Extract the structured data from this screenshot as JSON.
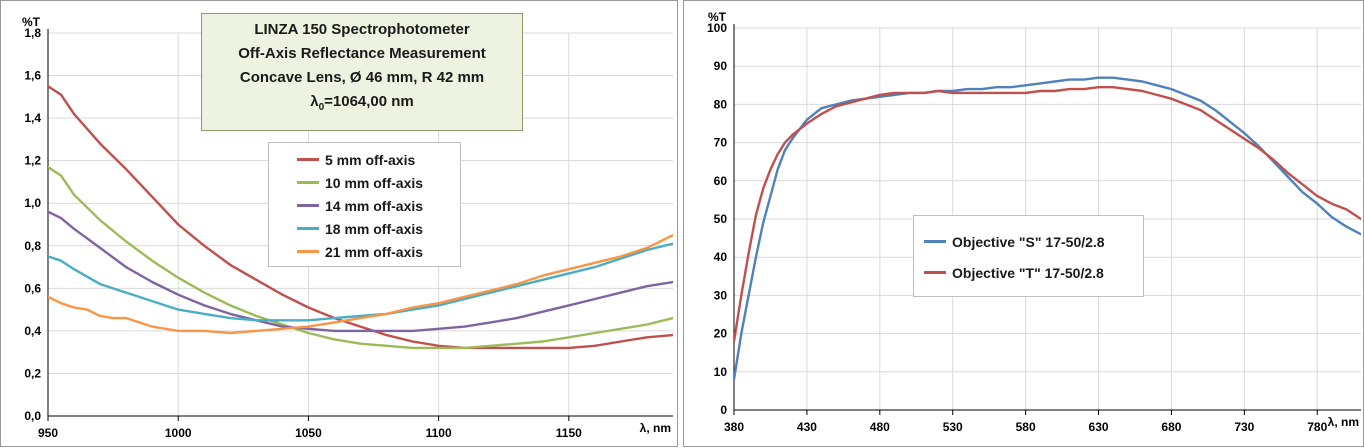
{
  "colors": {
    "red": "#c0504d",
    "green": "#9bbb59",
    "purple": "#8064a2",
    "teal": "#4bacc6",
    "orange": "#f79646",
    "blue": "#4f81bd",
    "grid": "#d9d9d9",
    "axis": "#000000"
  },
  "chart_data": [
    {
      "type": "line",
      "title_lines": [
        "LINZA 150 Spectrophotometer",
        "Off-Axis Reflectance Measurement",
        "Concave Lens, Ø 46 mm, R 42 mm"
      ],
      "title_lambda": {
        "symbol": "λ",
        "subscript": "0",
        "rest": "=1064,00 nm"
      },
      "ylabel": "%T",
      "xlabel": "λ, nm",
      "xlim": [
        950,
        1190
      ],
      "ylim": [
        0,
        1.8
      ],
      "xticks": [
        950,
        1000,
        1050,
        1100,
        1150
      ],
      "xtick_labels": [
        "950",
        "1000",
        "1050",
        "1100",
        "1150"
      ],
      "yticks": [
        0,
        0.2,
        0.4,
        0.6,
        0.8,
        1.0,
        1.2,
        1.4,
        1.6,
        1.8
      ],
      "ytick_labels": [
        "0,0",
        "0,2",
        "0,4",
        "0,6",
        "0,8",
        "1,0",
        "1,2",
        "1,4",
        "1,6",
        "1,8"
      ],
      "grid": true,
      "legend": "center",
      "series": [
        {
          "name": "5 mm off-axis",
          "color": "#c0504d",
          "x": [
            950,
            955,
            960,
            970,
            980,
            990,
            1000,
            1010,
            1020,
            1030,
            1040,
            1050,
            1060,
            1070,
            1080,
            1090,
            1100,
            1110,
            1120,
            1130,
            1140,
            1150,
            1160,
            1170,
            1180,
            1190
          ],
          "y": [
            1.55,
            1.51,
            1.42,
            1.28,
            1.16,
            1.03,
            0.9,
            0.8,
            0.71,
            0.64,
            0.57,
            0.51,
            0.46,
            0.42,
            0.38,
            0.35,
            0.33,
            0.32,
            0.32,
            0.32,
            0.32,
            0.32,
            0.33,
            0.35,
            0.37,
            0.38
          ]
        },
        {
          "name": "10 mm off-axis",
          "color": "#9bbb59",
          "x": [
            950,
            955,
            960,
            970,
            980,
            990,
            1000,
            1010,
            1020,
            1030,
            1040,
            1050,
            1060,
            1070,
            1080,
            1090,
            1100,
            1110,
            1120,
            1130,
            1140,
            1150,
            1160,
            1170,
            1180,
            1190
          ],
          "y": [
            1.17,
            1.13,
            1.04,
            0.92,
            0.82,
            0.73,
            0.65,
            0.58,
            0.52,
            0.47,
            0.43,
            0.39,
            0.36,
            0.34,
            0.33,
            0.32,
            0.32,
            0.32,
            0.33,
            0.34,
            0.35,
            0.37,
            0.39,
            0.41,
            0.43,
            0.46
          ]
        },
        {
          "name": "14 mm off-axis",
          "color": "#8064a2",
          "x": [
            950,
            955,
            960,
            970,
            980,
            990,
            1000,
            1010,
            1020,
            1030,
            1040,
            1050,
            1060,
            1070,
            1080,
            1090,
            1100,
            1110,
            1120,
            1130,
            1140,
            1150,
            1160,
            1170,
            1180,
            1190
          ],
          "y": [
            0.96,
            0.93,
            0.88,
            0.79,
            0.7,
            0.63,
            0.57,
            0.52,
            0.48,
            0.45,
            0.42,
            0.41,
            0.4,
            0.4,
            0.4,
            0.4,
            0.41,
            0.42,
            0.44,
            0.46,
            0.49,
            0.52,
            0.55,
            0.58,
            0.61,
            0.63
          ]
        },
        {
          "name": "18 mm off-axis",
          "color": "#4bacc6",
          "x": [
            950,
            955,
            960,
            970,
            980,
            990,
            1000,
            1010,
            1020,
            1030,
            1040,
            1050,
            1060,
            1070,
            1080,
            1090,
            1100,
            1110,
            1120,
            1130,
            1140,
            1150,
            1160,
            1170,
            1180,
            1190
          ],
          "y": [
            0.75,
            0.73,
            0.69,
            0.62,
            0.58,
            0.54,
            0.5,
            0.48,
            0.46,
            0.45,
            0.45,
            0.45,
            0.46,
            0.47,
            0.48,
            0.5,
            0.52,
            0.55,
            0.58,
            0.61,
            0.64,
            0.67,
            0.7,
            0.74,
            0.78,
            0.81
          ]
        },
        {
          "name": "21 mm off-axis",
          "color": "#f79646",
          "x": [
            950,
            955,
            960,
            965,
            970,
            975,
            980,
            990,
            1000,
            1010,
            1020,
            1030,
            1040,
            1050,
            1060,
            1070,
            1080,
            1090,
            1100,
            1110,
            1120,
            1130,
            1140,
            1150,
            1160,
            1170,
            1180,
            1190
          ],
          "y": [
            0.56,
            0.53,
            0.51,
            0.5,
            0.47,
            0.46,
            0.46,
            0.42,
            0.4,
            0.4,
            0.39,
            0.4,
            0.41,
            0.42,
            0.44,
            0.46,
            0.48,
            0.51,
            0.53,
            0.56,
            0.59,
            0.62,
            0.66,
            0.69,
            0.72,
            0.75,
            0.79,
            0.85
          ]
        }
      ]
    },
    {
      "type": "line",
      "ylabel": "%T",
      "xlabel": "λ, nm",
      "xlim": [
        380,
        810
      ],
      "ylim": [
        0,
        100
      ],
      "xticks": [
        380,
        430,
        480,
        530,
        580,
        630,
        680,
        730,
        780
      ],
      "xtick_labels": [
        "380",
        "430",
        "480",
        "530",
        "580",
        "630",
        "680",
        "730",
        "780"
      ],
      "yticks": [
        0,
        10,
        20,
        30,
        40,
        50,
        60,
        70,
        80,
        90,
        100
      ],
      "ytick_labels": [
        "0",
        "10",
        "20",
        "30",
        "40",
        "50",
        "60",
        "70",
        "80",
        "90",
        "100"
      ],
      "grid": true,
      "legend": "center-left",
      "series": [
        {
          "name": "Objective \"S\" 17-50/2.8",
          "color": "#4f81bd",
          "x": [
            380,
            385,
            390,
            395,
            400,
            405,
            410,
            415,
            420,
            430,
            440,
            450,
            460,
            470,
            480,
            490,
            500,
            510,
            520,
            530,
            540,
            550,
            560,
            570,
            580,
            590,
            600,
            610,
            620,
            630,
            640,
            650,
            660,
            670,
            680,
            690,
            700,
            710,
            720,
            730,
            740,
            750,
            760,
            770,
            780,
            790,
            800,
            810
          ],
          "y": [
            8,
            20,
            30,
            40,
            49,
            56,
            63,
            68,
            71,
            76,
            79,
            80,
            81,
            81.5,
            82,
            82.5,
            83,
            83,
            83.5,
            83.5,
            84,
            84,
            84.5,
            84.5,
            85,
            85.5,
            86,
            86.5,
            86.5,
            87,
            87,
            86.5,
            86,
            85,
            84,
            82.5,
            81,
            78.5,
            75.5,
            72.5,
            69,
            65,
            61,
            57,
            54,
            50.5,
            48,
            46
          ]
        },
        {
          "name": "Objective \"T\" 17-50/2.8",
          "color": "#c0504d",
          "x": [
            380,
            385,
            390,
            395,
            400,
            405,
            410,
            415,
            420,
            430,
            440,
            450,
            460,
            470,
            480,
            490,
            500,
            510,
            520,
            530,
            540,
            550,
            560,
            570,
            580,
            590,
            600,
            610,
            620,
            630,
            640,
            650,
            660,
            670,
            680,
            690,
            700,
            710,
            720,
            730,
            740,
            750,
            760,
            770,
            780,
            790,
            800,
            810
          ],
          "y": [
            18,
            30,
            41,
            51,
            58,
            63,
            67,
            70,
            72,
            75,
            77.5,
            79.5,
            80.5,
            81.5,
            82.5,
            83,
            83,
            83,
            83.5,
            83,
            83,
            83,
            83,
            83,
            83,
            83.5,
            83.5,
            84,
            84,
            84.5,
            84.5,
            84,
            83.5,
            82.5,
            81.5,
            80,
            78.5,
            76,
            73.5,
            71,
            68.5,
            65.5,
            62,
            59,
            56,
            54,
            52.5,
            50
          ]
        }
      ]
    }
  ]
}
